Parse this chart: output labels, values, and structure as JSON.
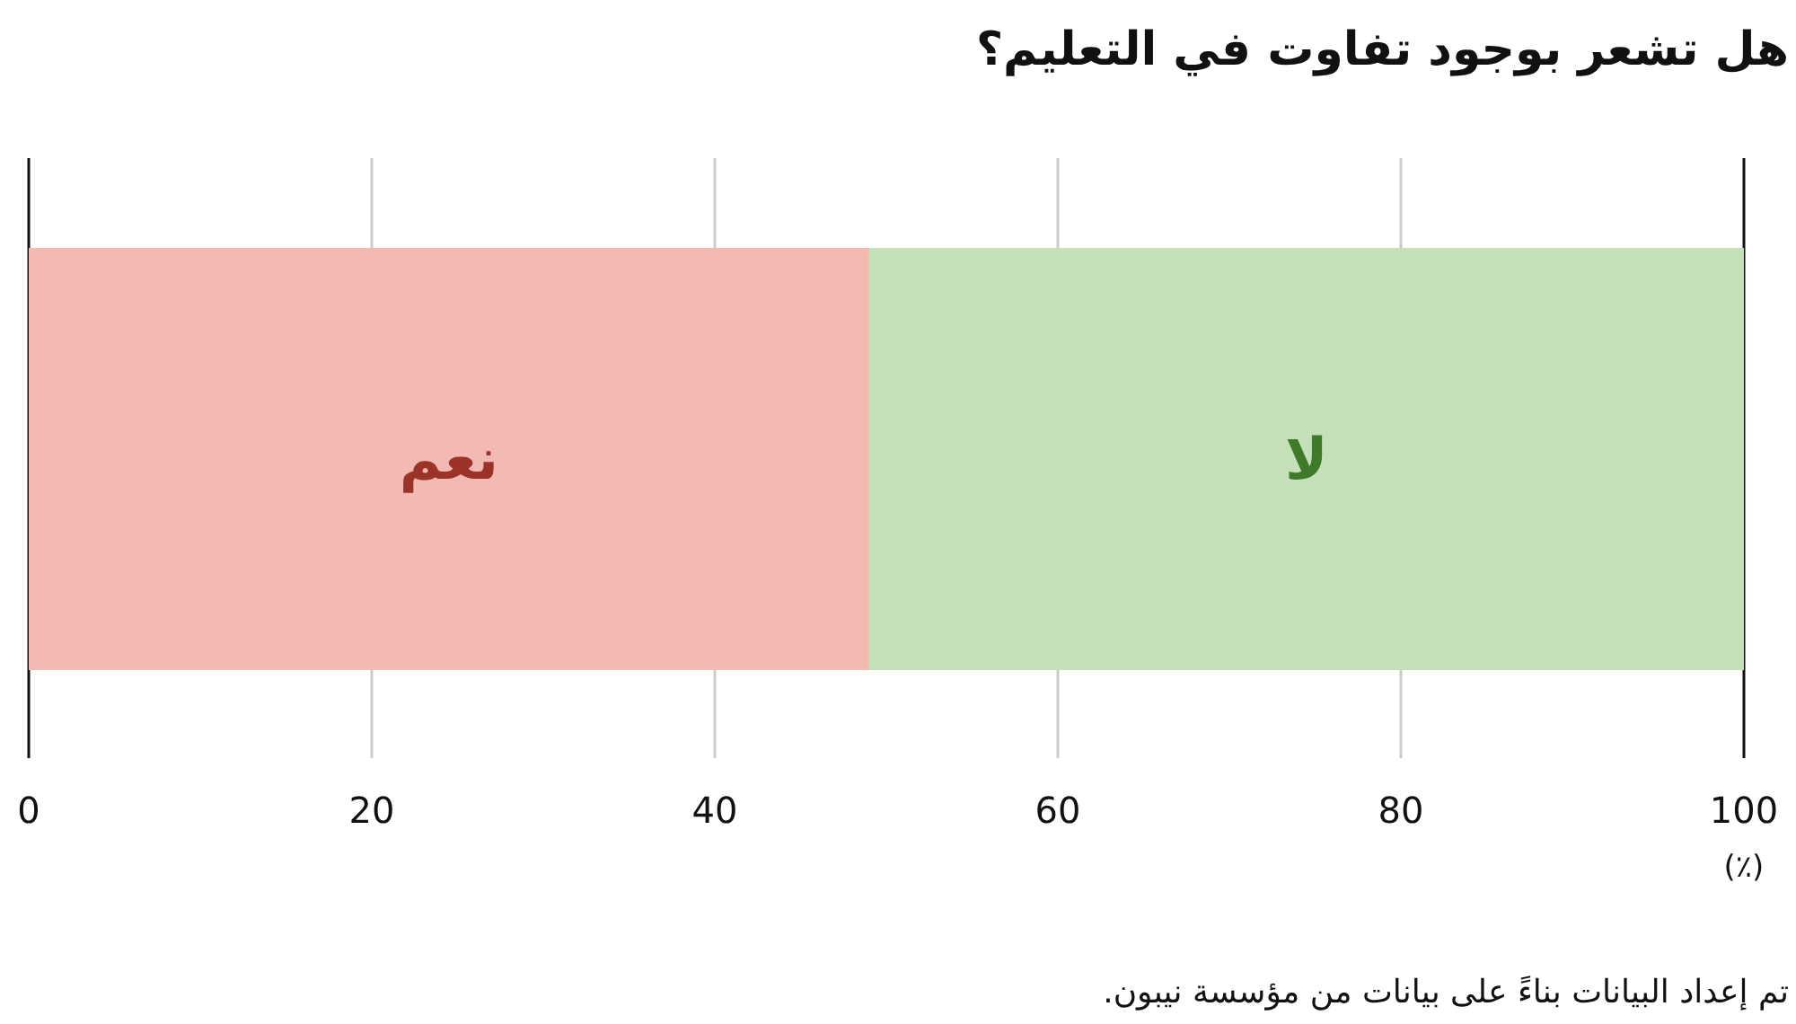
{
  "chart_data": {
    "type": "bar",
    "orientation": "horizontal",
    "stacked": true,
    "title": "هل تشعر بوجود تفاوت في التعليم؟",
    "xlabel": "(٪)",
    "categories": [
      null
    ],
    "series": [
      {
        "name": "نعم",
        "color": "#f2bab3",
        "values": [
          49
        ]
      },
      {
        "name": "لا",
        "color": "#c5e0b8",
        "values": [
          51
        ]
      }
    ],
    "xlim": [
      0,
      100
    ],
    "xticks": [
      0,
      20,
      40,
      60,
      80,
      100
    ],
    "grid": "x",
    "annotations": [
      "تم إعداد البيانات بناءً على بيانات من مؤسسة نيبون."
    ]
  }
}
